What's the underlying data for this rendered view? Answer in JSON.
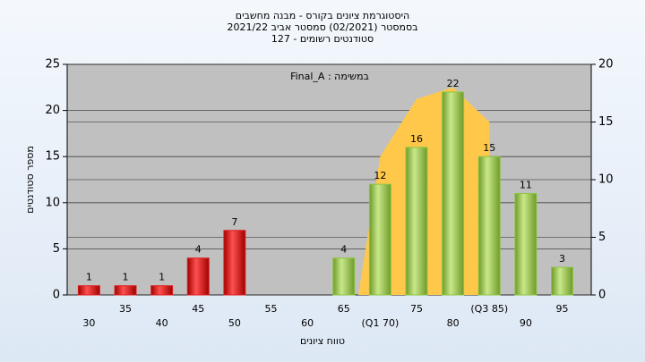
{
  "chart_data": {
    "type": "bar",
    "title": [
      "היסטוגרמת ציונים בקורס - מבנה מחשבים",
      "בסמסטר  (02/2021)  סמסטר אביב 2021/22",
      "סטודנטים רשומים - 127"
    ],
    "annotation": "Final_A : במשימה",
    "ylabel": "מספר סטודנטים",
    "xlabel": "טווח ציונים",
    "categories": [
      "30",
      "35",
      "40",
      "45",
      "50",
      "55",
      "60",
      "65",
      "(Q1 70)",
      "75",
      "80",
      "(Q3 85)",
      "90",
      "95"
    ],
    "x": [
      30,
      35,
      40,
      45,
      50,
      55,
      60,
      65,
      70,
      75,
      80,
      85,
      90,
      95
    ],
    "values": [
      1,
      1,
      1,
      4,
      7,
      null,
      null,
      4,
      12,
      16,
      22,
      15,
      11,
      3
    ],
    "colors": [
      "#e02020",
      "#e02020",
      "#e02020",
      "#e02020",
      "#e02020",
      "#e02020",
      "#e02020",
      "#8cc63f",
      "#8cc63f",
      "#8cc63f",
      "#8cc63f",
      "#8cc63f",
      "#8cc63f",
      "#8cc63f"
    ],
    "area": {
      "x": [
        67,
        70,
        75,
        80,
        85
      ],
      "values": [
        0,
        12,
        17,
        18,
        15
      ],
      "color": "#ffc84a",
      "axis": "y2"
    },
    "xlim": [
      27,
      99
    ],
    "ylim": [
      0,
      25
    ],
    "yticks": [
      0,
      5,
      10,
      15,
      20,
      25
    ],
    "y2lim": [
      0,
      20
    ],
    "y2ticks": [
      0,
      5,
      10,
      15,
      20
    ],
    "grid": true
  }
}
